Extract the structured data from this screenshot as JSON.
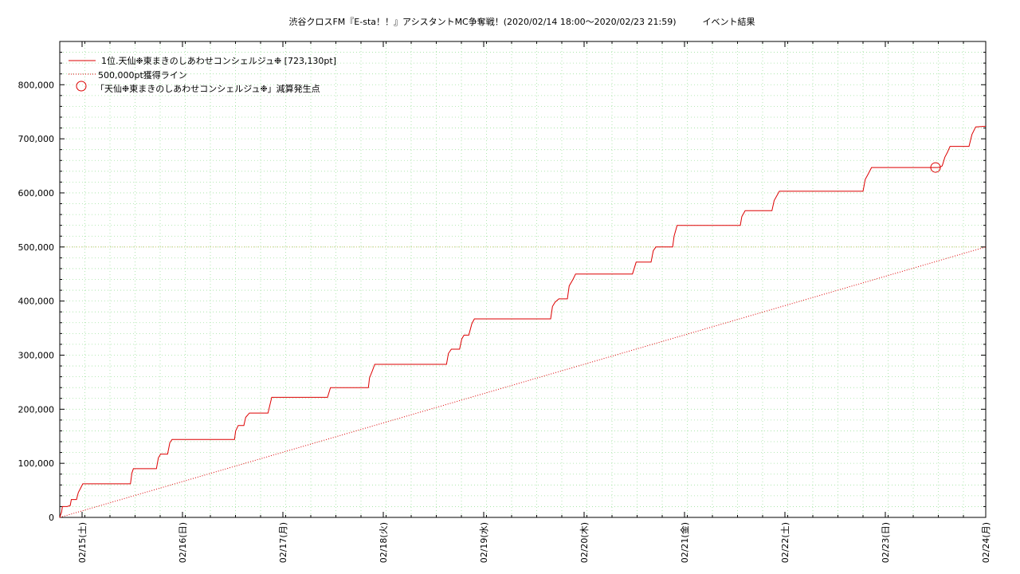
{
  "chart_data": {
    "type": "line",
    "title": "渋谷クロスFM『E-sta！！』アシスタントMC争奪戦！(2020/02/14 18:00～2020/02/23 21:59)　　　イベント結果",
    "xlabel": "",
    "ylabel": "",
    "x_range_hours": [
      0,
      249
    ],
    "ylim": [
      0,
      880000
    ],
    "yticks": [
      {
        "value": 0,
        "label": "0"
      },
      {
        "value": 100000,
        "label": "100,000"
      },
      {
        "value": 200000,
        "label": "200,000"
      },
      {
        "value": 300000,
        "label": "300,000"
      },
      {
        "value": 400000,
        "label": "400,000"
      },
      {
        "value": 500000,
        "label": "500,000"
      },
      {
        "value": 600000,
        "label": "600,000"
      },
      {
        "value": 700000,
        "label": "700,000"
      },
      {
        "value": 800000,
        "label": "800,000"
      }
    ],
    "xticks": [
      {
        "value": 6,
        "label": "02/15(土)"
      },
      {
        "value": 33,
        "label": "02/16(日)"
      },
      {
        "value": 60,
        "label": "02/17(月)"
      },
      {
        "value": 87,
        "label": "02/18(火)"
      },
      {
        "value": 114,
        "label": "02/19(水)"
      },
      {
        "value": 141,
        "label": "02/20(木)"
      },
      {
        "value": 168,
        "label": "02/21(金)"
      },
      {
        "value": 195,
        "label": "02/22(土)"
      },
      {
        "value": 222,
        "label": "02/23(日)"
      },
      {
        "value": 249,
        "label": "02/24(月)"
      }
    ],
    "grid": true,
    "legend_position": "top-left",
    "series": [
      {
        "name": "1位.天仙❉東まきのしあわせコンシェルジュ❉ [723,130pt]",
        "color": "#dd0000",
        "style": "step-line",
        "points": [
          [
            0,
            0
          ],
          [
            0.5,
            10000
          ],
          [
            0.7,
            20000
          ],
          [
            2,
            20000
          ],
          [
            2.8,
            22000
          ],
          [
            3.1,
            33000
          ],
          [
            4.5,
            33000
          ],
          [
            5,
            46000
          ],
          [
            5.6,
            54000
          ],
          [
            6.2,
            62000
          ],
          [
            19,
            62000
          ],
          [
            19.4,
            82000
          ],
          [
            19.8,
            90000
          ],
          [
            26,
            90000
          ],
          [
            26.5,
            110000
          ],
          [
            27.1,
            117000
          ],
          [
            29,
            117000
          ],
          [
            29.6,
            138000
          ],
          [
            30.2,
            144000
          ],
          [
            47,
            144000
          ],
          [
            47.3,
            160000
          ],
          [
            48,
            170000
          ],
          [
            49.5,
            170000
          ],
          [
            50,
            185000
          ],
          [
            51,
            193000
          ],
          [
            56,
            193000
          ],
          [
            57,
            222000
          ],
          [
            72,
            222000
          ],
          [
            72.8,
            240000
          ],
          [
            83,
            240000
          ],
          [
            83.3,
            258000
          ],
          [
            84,
            270000
          ],
          [
            84.7,
            283000
          ],
          [
            104,
            283000
          ],
          [
            104.5,
            303000
          ],
          [
            105.3,
            311000
          ],
          [
            107.5,
            311000
          ],
          [
            108.1,
            330000
          ],
          [
            108.7,
            337000
          ],
          [
            110,
            337000
          ],
          [
            110.8,
            358000
          ],
          [
            111.5,
            367000
          ],
          [
            132,
            367000
          ],
          [
            132.5,
            390000
          ],
          [
            133.2,
            398000
          ],
          [
            134.2,
            404000
          ],
          [
            136.5,
            404000
          ],
          [
            137,
            428000
          ],
          [
            138,
            440000
          ],
          [
            138.7,
            450000
          ],
          [
            154,
            450000
          ],
          [
            155,
            472000
          ],
          [
            159,
            472000
          ],
          [
            159.6,
            493000
          ],
          [
            160.3,
            500000
          ],
          [
            164.8,
            500000
          ],
          [
            165.2,
            520000
          ],
          [
            166,
            540000
          ],
          [
            183,
            540000
          ],
          [
            183.4,
            556000
          ],
          [
            184.3,
            567000
          ],
          [
            191.5,
            567000
          ],
          [
            192.1,
            586000
          ],
          [
            193.5,
            603000
          ],
          [
            216,
            603000
          ],
          [
            216.6,
            625000
          ],
          [
            217.4,
            635000
          ],
          [
            218.3,
            647000
          ],
          [
            236.5,
            647000
          ],
          [
            237.3,
            650000
          ],
          [
            238,
            666000
          ],
          [
            238.7,
            675000
          ],
          [
            239.4,
            686000
          ],
          [
            244.5,
            686000
          ],
          [
            245.3,
            708000
          ],
          [
            246.3,
            722000
          ],
          [
            249,
            723130
          ]
        ]
      },
      {
        "name": "500,000pt獲得ライン",
        "color": "#dd0000",
        "style": "dotted",
        "points": [
          [
            0,
            0
          ],
          [
            249,
            500000
          ]
        ]
      },
      {
        "name": "「天仙❉東まきのしあわせコンシェルジュ❉」減算発生点",
        "color": "#dd0000",
        "style": "circle-marker",
        "points": [
          [
            235.5,
            647000
          ]
        ]
      }
    ]
  }
}
